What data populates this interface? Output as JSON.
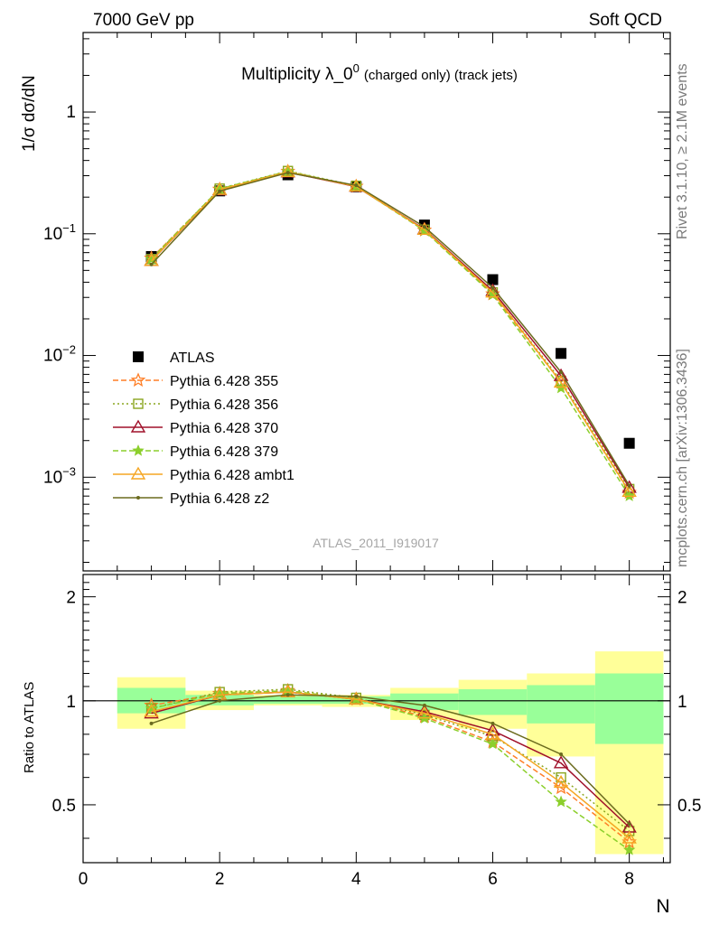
{
  "header": {
    "left": "7000 GeV pp",
    "right": "Soft QCD"
  },
  "side_labels": {
    "rivet": "Rivet 3.1.10, ≥ 2.1M events",
    "source": "mcplots.cern.ch [arXiv:1306.3436]"
  },
  "colors": {
    "atlas": "#000000",
    "p355": "#ff7f27",
    "p356": "#8aa51e",
    "p370": "#a0102a",
    "p379": "#8ccf2c",
    "ambt1": "#f5a623",
    "z2": "#6b6b1e",
    "band_inner": "#99ff99",
    "band_outer": "#ffff99"
  },
  "chart_data": [
    {
      "type": "line",
      "title_main": "Multiplicity λ_0",
      "title_sup": "0",
      "title_tail": "(charged only) (track jets)",
      "ylabel": "1/σ dσ/dN",
      "analysis_label": "ATLAS_2011_I919017",
      "yscale": "log",
      "xlim": [
        0,
        8.6
      ],
      "ylim": [
        0.00017,
        4.5
      ],
      "y_ticks": [
        {
          "mant": "10",
          "exp": "−3",
          "v": 0.001
        },
        {
          "mant": "10",
          "exp": "−2",
          "v": 0.01
        },
        {
          "mant": "10",
          "exp": "−1",
          "v": 0.1
        },
        {
          "mant": "1",
          "exp": "",
          "v": 1
        }
      ],
      "x": [
        1,
        2,
        3,
        4,
        5,
        6,
        7,
        8
      ],
      "series": [
        {
          "name": "ATLAS",
          "key": "atlas",
          "marker": "square",
          "values": [
            0.065,
            0.225,
            0.305,
            0.243,
            0.118,
            0.042,
            0.0104,
            0.0019
          ]
        },
        {
          "name": "Pythia 6.428 355",
          "key": "p355",
          "marker": "star",
          "dash": "6,3",
          "values": [
            0.063,
            0.232,
            0.325,
            0.245,
            0.107,
            0.032,
            0.006,
            0.00075
          ]
        },
        {
          "name": "Pythia 6.428 356",
          "key": "p356",
          "marker": "square-open",
          "dash": "2,3",
          "values": [
            0.062,
            0.235,
            0.328,
            0.248,
            0.108,
            0.033,
            0.0062,
            0.0008
          ]
        },
        {
          "name": "Pythia 6.428 370",
          "key": "p370",
          "marker": "triangle-open",
          "dash": "",
          "values": [
            0.06,
            0.228,
            0.32,
            0.244,
            0.109,
            0.034,
            0.0068,
            0.00082
          ]
        },
        {
          "name": "Pythia 6.428 379",
          "key": "p379",
          "marker": "star-small",
          "dash": "6,3",
          "values": [
            0.062,
            0.234,
            0.326,
            0.246,
            0.106,
            0.0315,
            0.0054,
            0.0007
          ]
        },
        {
          "name": "Pythia 6.428 ambt1",
          "key": "ambt1",
          "marker": "triangle-open",
          "dash": "",
          "values": [
            0.06,
            0.23,
            0.322,
            0.245,
            0.108,
            0.033,
            0.006,
            0.00076
          ]
        },
        {
          "name": "Pythia 6.428 z2",
          "key": "z2",
          "marker": "dot",
          "dash": "",
          "values": [
            0.056,
            0.224,
            0.318,
            0.25,
            0.114,
            0.036,
            0.0073,
            0.00085
          ]
        }
      ]
    },
    {
      "type": "line",
      "ylabel": "Ratio to ATLAS",
      "xlabel": "N",
      "xlim": [
        0,
        8.6
      ],
      "ylim": [
        0.34,
        2.32
      ],
      "x_ticks": [
        0,
        2,
        4,
        6,
        8
      ],
      "y_ticks": [
        0.5,
        1,
        2
      ],
      "bands": [
        {
          "x0": 0.5,
          "x1": 1.5,
          "inner": [
            0.92,
            1.09
          ],
          "outer": [
            0.83,
            1.17
          ]
        },
        {
          "x0": 1.5,
          "x1": 2.5,
          "inner": [
            0.97,
            1.04
          ],
          "outer": [
            0.94,
            1.07
          ]
        },
        {
          "x0": 2.5,
          "x1": 3.5,
          "inner": [
            0.98,
            1.03
          ],
          "outer": [
            0.97,
            1.04
          ]
        },
        {
          "x0": 3.5,
          "x1": 4.5,
          "inner": [
            0.98,
            1.03
          ],
          "outer": [
            0.96,
            1.04
          ]
        },
        {
          "x0": 4.5,
          "x1": 5.5,
          "inner": [
            0.94,
            1.05
          ],
          "outer": [
            0.88,
            1.09
          ]
        },
        {
          "x0": 5.5,
          "x1": 6.5,
          "inner": [
            0.91,
            1.08
          ],
          "outer": [
            0.83,
            1.15
          ]
        },
        {
          "x0": 6.5,
          "x1": 7.5,
          "inner": [
            0.86,
            1.11
          ],
          "outer": [
            0.69,
            1.2
          ]
        },
        {
          "x0": 7.5,
          "x1": 8.5,
          "inner": [
            0.75,
            1.2
          ],
          "outer": [
            0.36,
            1.39
          ]
        }
      ],
      "x": [
        1,
        2,
        3,
        4,
        5,
        6,
        7,
        8
      ],
      "series": [
        {
          "name": "Pythia 6.428 355",
          "key": "p355",
          "marker": "star",
          "dash": "6,3",
          "values": [
            0.97,
            1.05,
            1.07,
            1.01,
            0.9,
            0.76,
            0.56,
            0.39
          ]
        },
        {
          "name": "Pythia 6.428 356",
          "key": "p356",
          "marker": "square-open",
          "dash": "2,3",
          "values": [
            0.95,
            1.06,
            1.08,
            1.02,
            0.91,
            0.79,
            0.6,
            0.42
          ]
        },
        {
          "name": "Pythia 6.428 370",
          "key": "p370",
          "marker": "triangle-open",
          "dash": "",
          "values": [
            0.92,
            1.04,
            1.06,
            1.01,
            0.93,
            0.82,
            0.66,
            0.43
          ]
        },
        {
          "name": "Pythia 6.428 379",
          "key": "p379",
          "marker": "star-small",
          "dash": "6,3",
          "values": [
            0.95,
            1.05,
            1.07,
            1.01,
            0.89,
            0.75,
            0.51,
            0.37
          ]
        },
        {
          "name": "Pythia 6.428 ambt1",
          "key": "ambt1",
          "marker": "triangle-open",
          "dash": "",
          "values": [
            0.93,
            1.04,
            1.06,
            1.01,
            0.92,
            0.8,
            0.58,
            0.4
          ]
        },
        {
          "name": "Pythia 6.428 z2",
          "key": "z2",
          "marker": "dot",
          "dash": "",
          "values": [
            0.86,
            1.0,
            1.04,
            1.03,
            0.97,
            0.86,
            0.7,
            0.44
          ]
        }
      ]
    }
  ]
}
